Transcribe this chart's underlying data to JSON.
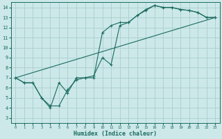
{
  "xlabel": "Humidex (Indice chaleur)",
  "bg_color": "#cce8e8",
  "grid_color": "#aacece",
  "line_color": "#1a6b60",
  "xlim": [
    -0.5,
    23.5
  ],
  "ylim": [
    2.5,
    14.5
  ],
  "xticks": [
    0,
    1,
    2,
    3,
    4,
    5,
    6,
    7,
    8,
    9,
    10,
    11,
    12,
    13,
    14,
    15,
    16,
    17,
    18,
    19,
    20,
    21,
    22,
    23
  ],
  "yticks": [
    3,
    4,
    5,
    6,
    7,
    8,
    9,
    10,
    11,
    12,
    13,
    14
  ],
  "line1_x": [
    0,
    1,
    2,
    3,
    4,
    5,
    6,
    7,
    8,
    9,
    10,
    11,
    12,
    13,
    14,
    15,
    16,
    17,
    18,
    19,
    20,
    21,
    22,
    23
  ],
  "line1_y": [
    7.0,
    6.5,
    6.5,
    5.0,
    4.0,
    6.5,
    5.5,
    7.0,
    7.0,
    7.0,
    11.5,
    12.2,
    12.5,
    12.5,
    13.2,
    13.8,
    14.2,
    14.0,
    14.0,
    13.8,
    13.7,
    13.5,
    13.0,
    13.0
  ],
  "line2_x": [
    0,
    1,
    2,
    3,
    4,
    5,
    6,
    7,
    8,
    9,
    10,
    11,
    12,
    13,
    14,
    15,
    16,
    17,
    18,
    19,
    20,
    21,
    22,
    23
  ],
  "line2_y": [
    7.0,
    6.5,
    6.5,
    5.0,
    4.2,
    4.2,
    5.8,
    6.8,
    7.0,
    7.2,
    9.0,
    8.3,
    12.2,
    12.5,
    13.2,
    13.7,
    14.2,
    14.0,
    14.0,
    13.8,
    13.7,
    13.5,
    13.0,
    13.0
  ],
  "line3_x": [
    0,
    23
  ],
  "line3_y": [
    7.0,
    13.0
  ]
}
